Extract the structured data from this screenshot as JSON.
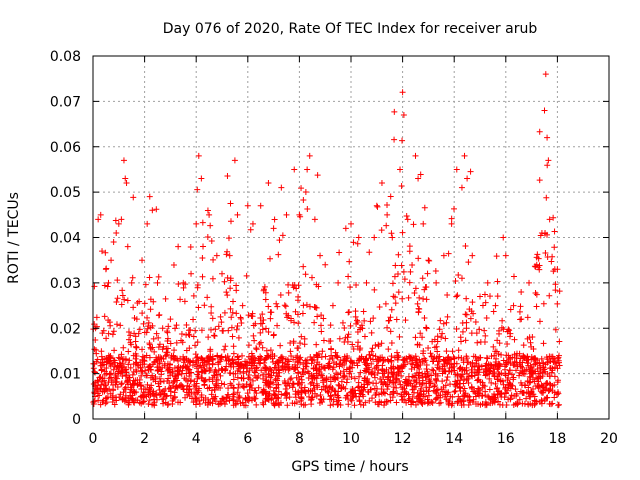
{
  "chart_data": {
    "type": "scatter",
    "title": "Day 076 of 2020, Rate Of TEC Index for receiver arub",
    "xlabel": "GPS time / hours",
    "ylabel": "ROTI / TECUs",
    "xlim": [
      0,
      20
    ],
    "ylim": [
      0,
      0.08
    ],
    "x_ticks": [
      0,
      2,
      4,
      6,
      8,
      10,
      12,
      14,
      16,
      18,
      20
    ],
    "y_ticks": [
      0,
      0.01,
      0.02,
      0.03,
      0.04,
      0.05,
      0.06,
      0.07,
      0.08
    ],
    "x_tick_labels": [
      "0",
      "2",
      "4",
      "6",
      "8",
      "10",
      "12",
      "14",
      "16",
      "18",
      "20"
    ],
    "y_tick_labels": [
      "0",
      "0.01",
      "0.02",
      "0.03",
      "0.04",
      "0.05",
      "0.06",
      "0.07",
      "0.08"
    ],
    "grid": true,
    "marker": "+",
    "color": "#ff0000",
    "data_x_range": [
      0,
      18.1
    ],
    "series": [
      {
        "points": [
          [
            0.1,
            0.02
          ],
          [
            0.2,
            0.044
          ],
          [
            0.3,
            0.045
          ],
          [
            0.35,
            0.037
          ],
          [
            0.5,
            0.033
          ],
          [
            0.6,
            0.03
          ],
          [
            0.7,
            0.035
          ],
          [
            0.8,
            0.039
          ],
          [
            0.9,
            0.041
          ],
          [
            1.0,
            0.043
          ],
          [
            1.1,
            0.044
          ],
          [
            1.2,
            0.057
          ],
          [
            1.25,
            0.053
          ],
          [
            1.3,
            0.052
          ],
          [
            1.5,
            0.03
          ],
          [
            1.7,
            0.022
          ],
          [
            1.9,
            0.035
          ],
          [
            2.1,
            0.043
          ],
          [
            2.2,
            0.049
          ],
          [
            2.3,
            0.046
          ],
          [
            2.5,
            0.03
          ],
          [
            2.7,
            0.02
          ],
          [
            3.0,
            0.022
          ],
          [
            3.3,
            0.038
          ],
          [
            3.5,
            0.03
          ],
          [
            3.8,
            0.032
          ],
          [
            4.0,
            0.043
          ],
          [
            4.1,
            0.058
          ],
          [
            4.2,
            0.053
          ],
          [
            4.5,
            0.045
          ],
          [
            4.8,
            0.036
          ],
          [
            5.0,
            0.032
          ],
          [
            5.3,
            0.036
          ],
          [
            5.5,
            0.057
          ],
          [
            5.6,
            0.045
          ],
          [
            5.8,
            0.025
          ],
          [
            6.0,
            0.047
          ],
          [
            6.2,
            0.043
          ],
          [
            6.5,
            0.047
          ],
          [
            6.8,
            0.052
          ],
          [
            7.0,
            0.042
          ],
          [
            7.3,
            0.051
          ],
          [
            7.5,
            0.045
          ],
          [
            7.8,
            0.055
          ],
          [
            8.0,
            0.045
          ],
          [
            8.3,
            0.055
          ],
          [
            8.4,
            0.058
          ],
          [
            8.6,
            0.044
          ],
          [
            8.8,
            0.036
          ],
          [
            9.0,
            0.034
          ],
          [
            9.3,
            0.025
          ],
          [
            9.5,
            0.03
          ],
          [
            9.8,
            0.042
          ],
          [
            10.0,
            0.043
          ],
          [
            10.3,
            0.04
          ],
          [
            10.6,
            0.03
          ],
          [
            10.9,
            0.04
          ],
          [
            11.0,
            0.047
          ],
          [
            11.2,
            0.052
          ],
          [
            11.4,
            0.045
          ],
          [
            11.6,
            0.04
          ],
          [
            11.9,
            0.055
          ],
          [
            12.0,
            0.072
          ],
          [
            12.05,
            0.067
          ],
          [
            12.2,
            0.044
          ],
          [
            12.5,
            0.058
          ],
          [
            12.6,
            0.053
          ],
          [
            12.8,
            0.043
          ],
          [
            13.0,
            0.035
          ],
          [
            13.3,
            0.03
          ],
          [
            13.6,
            0.036
          ],
          [
            13.9,
            0.043
          ],
          [
            14.1,
            0.055
          ],
          [
            14.3,
            0.051
          ],
          [
            14.4,
            0.058
          ],
          [
            14.5,
            0.053
          ],
          [
            14.7,
            0.036
          ],
          [
            15.0,
            0.027
          ],
          [
            15.3,
            0.03
          ],
          [
            15.6,
            0.025
          ],
          [
            15.9,
            0.04
          ],
          [
            16.0,
            0.036
          ],
          [
            16.3,
            0.025
          ],
          [
            16.6,
            0.022
          ],
          [
            16.9,
            0.03
          ],
          [
            17.2,
            0.034
          ],
          [
            17.4,
            0.041
          ],
          [
            17.5,
            0.068
          ],
          [
            17.55,
            0.076
          ],
          [
            17.6,
            0.062
          ],
          [
            17.65,
            0.057
          ],
          [
            17.7,
            0.044
          ],
          [
            17.9,
            0.033
          ],
          [
            18.0,
            0.033
          ]
        ]
      }
    ]
  }
}
